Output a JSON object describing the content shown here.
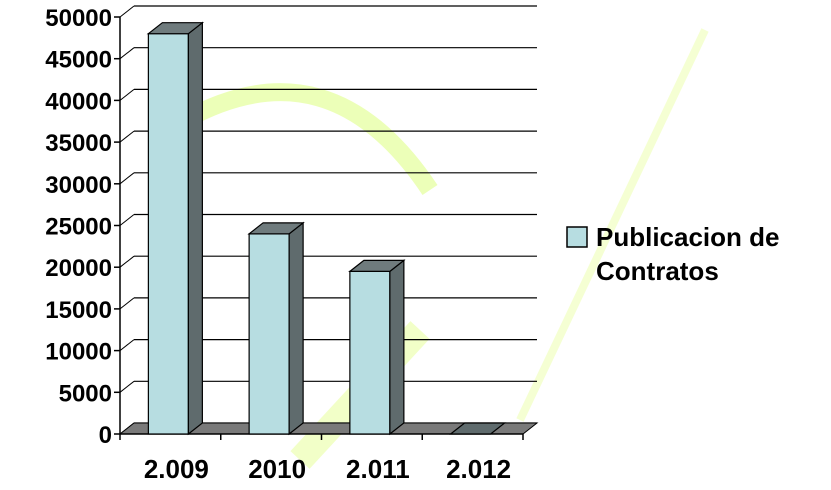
{
  "chart_data": {
    "type": "bar",
    "categories": [
      "2.009",
      "2010",
      "2.011",
      "2.012"
    ],
    "series": [
      {
        "name": "Publicacion de Contratos",
        "values": [
          48000,
          24000,
          19500,
          0
        ]
      }
    ],
    "ylim": [
      0,
      50000
    ],
    "yticks": [
      "0",
      "5000",
      "10000",
      "15000",
      "20000",
      "25000",
      "30000",
      "35000",
      "40000",
      "45000",
      "50000"
    ],
    "grid": true,
    "legend_position": "right",
    "legend_lines": [
      "Publicacion de",
      "Contratos"
    ],
    "colors": {
      "bar_front": "#b7dde1",
      "bar_side": "#5f6b6d",
      "bar_top": "#6f7b7d",
      "floor": "#7a7a7a",
      "watermark": "#d8ff7a"
    }
  }
}
